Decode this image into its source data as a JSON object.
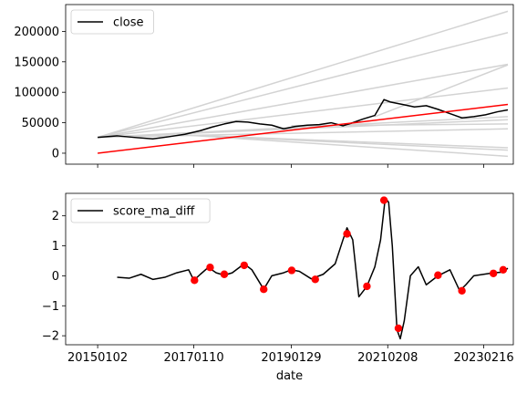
{
  "chart_data": [
    {
      "type": "line",
      "title": "",
      "xlabel": "",
      "ylabel": "",
      "x_range": [
        "2014-05-01",
        "2023-10-01"
      ],
      "ylim": [
        -18000,
        244000
      ],
      "y_ticks": [
        0,
        50000,
        100000,
        150000,
        200000
      ],
      "y_tick_labels": [
        "0",
        "50000",
        "100000",
        "150000",
        "200000"
      ],
      "legend": {
        "position": "top-left",
        "entries": [
          {
            "label": "close",
            "color": "#000000"
          }
        ]
      },
      "series": [
        {
          "name": "close",
          "color": "#000000",
          "points": [
            [
              "2015-01-02",
              26000
            ],
            [
              "2015-06-01",
              28500
            ],
            [
              "2015-11-01",
              25500
            ],
            [
              "2016-03-01",
              23500
            ],
            [
              "2016-07-01",
              27000
            ],
            [
              "2016-11-01",
              31000
            ],
            [
              "2017-03-01",
              37000
            ],
            [
              "2017-06-01",
              43000
            ],
            [
              "2017-09-01",
              48000
            ],
            [
              "2017-12-01",
              52000
            ],
            [
              "2018-03-01",
              51000
            ],
            [
              "2018-06-01",
              48000
            ],
            [
              "2018-09-01",
              46000
            ],
            [
              "2018-12-01",
              40000
            ],
            [
              "2019-03-01",
              44000
            ],
            [
              "2019-06-01",
              46000
            ],
            [
              "2019-09-01",
              47000
            ],
            [
              "2019-12-01",
              50000
            ],
            [
              "2020-03-01",
              45000
            ],
            [
              "2020-05-01",
              49000
            ],
            [
              "2020-08-01",
              56000
            ],
            [
              "2020-11-01",
              62000
            ],
            [
              "2021-01-10",
              88000
            ],
            [
              "2021-03-01",
              84000
            ],
            [
              "2021-06-01",
              80000
            ],
            [
              "2021-09-01",
              76000
            ],
            [
              "2021-12-01",
              78000
            ],
            [
              "2022-03-01",
              72000
            ],
            [
              "2022-06-01",
              65000
            ],
            [
              "2022-09-01",
              58000
            ],
            [
              "2022-12-01",
              60000
            ],
            [
              "2023-03-01",
              63000
            ],
            [
              "2023-06-01",
              68000
            ],
            [
              "2023-08-20",
              71000
            ]
          ]
        },
        {
          "name": "",
          "color": "#ff0000",
          "points": [
            [
              "2015-01-02",
              0
            ],
            [
              "2023-08-20",
              80000
            ]
          ]
        }
      ],
      "gray_lines": [
        {
          "color": "#d3d3d3",
          "points": [
            [
              "2015-01-02",
              26000
            ],
            [
              "2023-08-20",
              233000
            ]
          ]
        },
        {
          "color": "#d3d3d3",
          "points": [
            [
              "2015-01-02",
              26000
            ],
            [
              "2023-08-20",
              198000
            ]
          ]
        },
        {
          "color": "#d3d3d3",
          "points": [
            [
              "2015-01-02",
              26000
            ],
            [
              "2023-08-20",
              146000
            ]
          ]
        },
        {
          "color": "#d3d3d3",
          "points": [
            [
              "2015-01-02",
              26000
            ],
            [
              "2023-08-20",
              107000
            ]
          ]
        },
        {
          "color": "#d3d3d3",
          "points": [
            [
              "2015-01-02",
              26000
            ],
            [
              "2023-08-20",
              60000
            ]
          ]
        },
        {
          "color": "#d3d3d3",
          "points": [
            [
              "2015-01-02",
              26000
            ],
            [
              "2023-08-20",
              55000
            ]
          ]
        },
        {
          "color": "#d3d3d3",
          "points": [
            [
              "2015-01-02",
              26000
            ],
            [
              "2023-08-20",
              40000
            ]
          ]
        },
        {
          "color": "#d3d3d3",
          "points": [
            [
              "2016-11-01",
              30000
            ],
            [
              "2023-08-20",
              9000
            ]
          ]
        },
        {
          "color": "#d3d3d3",
          "points": [
            [
              "2016-11-01",
              30000
            ],
            [
              "2023-08-20",
              5000
            ]
          ]
        },
        {
          "color": "#d3d3d3",
          "points": [
            [
              "2016-11-01",
              30000
            ],
            [
              "2023-08-20",
              -5000
            ]
          ]
        },
        {
          "color": "#d3d3d3",
          "points": [
            [
              "2020-11-01",
              60000
            ],
            [
              "2023-08-20",
              145000
            ]
          ]
        },
        {
          "color": "#d3d3d3",
          "points": [
            [
              "2019-01-29",
              45000
            ],
            [
              "2023-08-20",
              48000
            ]
          ]
        }
      ]
    },
    {
      "type": "line",
      "title": "",
      "xlabel": "date",
      "ylabel": "",
      "x_range": [
        "2014-05-01",
        "2023-10-01"
      ],
      "ylim": [
        -2.3,
        2.75
      ],
      "y_ticks": [
        -2,
        -1,
        0,
        1,
        2
      ],
      "y_tick_labels": [
        "−2",
        "−1",
        "0",
        "1",
        "2"
      ],
      "x_ticks": [
        "2015-01-02",
        "2017-01-10",
        "2019-01-29",
        "2021-02-08",
        "2023-02-16"
      ],
      "x_tick_labels": [
        "20150102",
        "20170110",
        "20190129",
        "20210208",
        "20230216"
      ],
      "legend": {
        "position": "top-left",
        "entries": [
          {
            "label": "score_ma_diff",
            "color": "#000000"
          }
        ]
      },
      "series": [
        {
          "name": "score_ma_diff",
          "color": "#000000",
          "points": [
            [
              "2015-06-01",
              -0.05
            ],
            [
              "2015-09-01",
              -0.08
            ],
            [
              "2015-12-01",
              0.05
            ],
            [
              "2016-03-01",
              -0.12
            ],
            [
              "2016-06-01",
              -0.05
            ],
            [
              "2016-09-01",
              0.1
            ],
            [
              "2016-12-01",
              0.2
            ],
            [
              "2017-01-10",
              -0.15
            ],
            [
              "2017-03-01",
              0.05
            ],
            [
              "2017-05-01",
              0.28
            ],
            [
              "2017-07-01",
              0.1
            ],
            [
              "2017-09-01",
              0.02
            ],
            [
              "2017-11-01",
              0.1
            ],
            [
              "2018-02-01",
              0.4
            ],
            [
              "2018-04-01",
              0.2
            ],
            [
              "2018-07-01",
              -0.45
            ],
            [
              "2018-09-01",
              0.0
            ],
            [
              "2018-12-01",
              0.1
            ],
            [
              "2019-01-29",
              0.2
            ],
            [
              "2019-04-01",
              0.15
            ],
            [
              "2019-07-01",
              -0.1
            ],
            [
              "2019-10-01",
              0.05
            ],
            [
              "2020-01-01",
              0.4
            ],
            [
              "2020-03-01",
              1.2
            ],
            [
              "2020-04-01",
              1.6
            ],
            [
              "2020-05-15",
              1.2
            ],
            [
              "2020-07-01",
              -0.7
            ],
            [
              "2020-09-01",
              -0.35
            ],
            [
              "2020-11-01",
              0.3
            ],
            [
              "2020-12-15",
              1.2
            ],
            [
              "2021-01-20",
              2.6
            ],
            [
              "2021-02-15",
              2.45
            ],
            [
              "2021-03-15",
              1.0
            ],
            [
              "2021-04-20",
              -1.8
            ],
            [
              "2021-05-15",
              -2.1
            ],
            [
              "2021-06-15",
              -1.5
            ],
            [
              "2021-08-01",
              0.0
            ],
            [
              "2021-10-01",
              0.3
            ],
            [
              "2021-12-01",
              -0.3
            ],
            [
              "2022-03-01",
              0.0
            ],
            [
              "2022-06-01",
              0.2
            ],
            [
              "2022-08-15",
              -0.5
            ],
            [
              "2022-10-01",
              -0.3
            ],
            [
              "2022-12-01",
              0.0
            ],
            [
              "2023-02-15",
              0.05
            ],
            [
              "2023-05-01",
              0.1
            ],
            [
              "2023-07-01",
              0.12
            ],
            [
              "2023-08-20",
              0.25
            ]
          ]
        }
      ],
      "markers": {
        "color": "#ff0000",
        "points": [
          [
            "2017-01-15",
            -0.15
          ],
          [
            "2017-05-15",
            0.28
          ],
          [
            "2017-09-01",
            0.05
          ],
          [
            "2018-02-01",
            0.35
          ],
          [
            "2018-07-01",
            -0.45
          ],
          [
            "2019-02-01",
            0.18
          ],
          [
            "2019-08-01",
            -0.12
          ],
          [
            "2020-04-01",
            1.4
          ],
          [
            "2020-09-01",
            -0.35
          ],
          [
            "2021-01-10",
            2.52
          ],
          [
            "2021-05-01",
            -1.75
          ],
          [
            "2022-03-01",
            0.02
          ],
          [
            "2022-09-01",
            -0.5
          ],
          [
            "2023-05-01",
            0.08
          ],
          [
            "2023-07-15",
            0.2
          ]
        ]
      }
    }
  ]
}
